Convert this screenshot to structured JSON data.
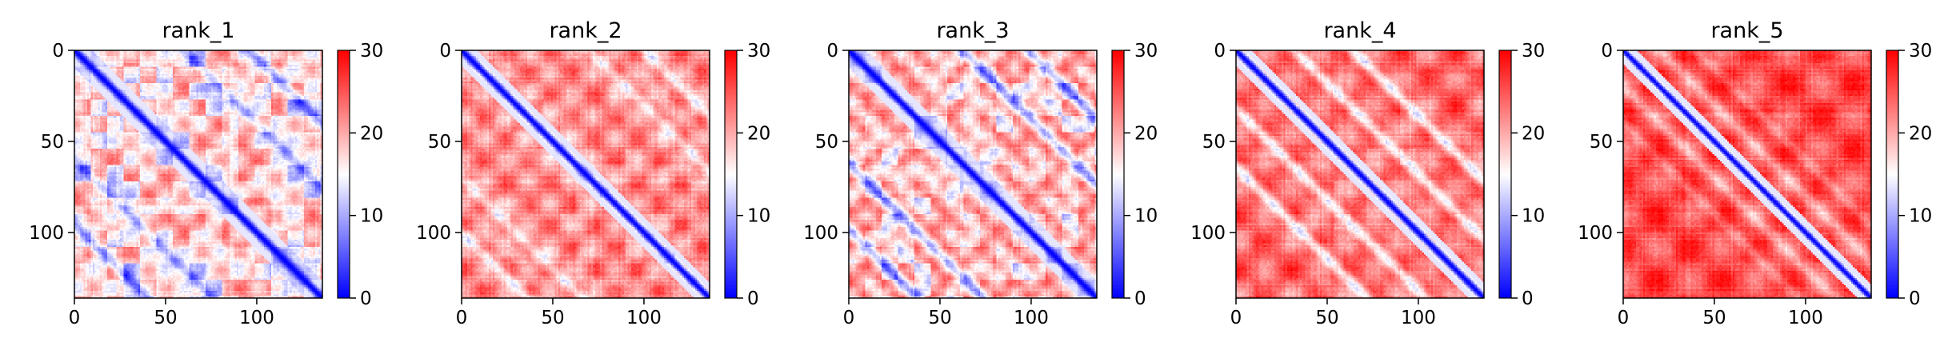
{
  "figure_colors": {
    "low": "#0000ff",
    "mid": "#ffffff",
    "high": "#ff0000",
    "axis": "#000000"
  },
  "chart_data": [
    {
      "type": "heatmap",
      "title": "rank_1",
      "matrix_size": 136,
      "xlim": [
        0,
        136
      ],
      "ylim": [
        136,
        0
      ],
      "xticks": [
        0,
        50,
        100
      ],
      "yticks": [
        0,
        50,
        100
      ],
      "colorbar": {
        "min": 0,
        "max": 30,
        "ticks": [
          0,
          10,
          20,
          30
        ],
        "colormap": "bwr"
      },
      "pattern": {
        "diagonal_width": 4.5,
        "offdiag_bands": [
          60,
          96
        ],
        "band_strength": 0.7,
        "block_period": 20,
        "patchiness": 0.9,
        "base_level": 0.68
      }
    },
    {
      "type": "heatmap",
      "title": "rank_2",
      "matrix_size": 136,
      "xlim": [
        0,
        136
      ],
      "ylim": [
        136,
        0
      ],
      "xticks": [
        0,
        50,
        100
      ],
      "yticks": [
        0,
        50,
        100
      ],
      "colorbar": {
        "min": 0,
        "max": 30,
        "ticks": [
          0,
          10,
          20,
          30
        ],
        "colormap": "bwr"
      },
      "pattern": {
        "diagonal_width": 4.0,
        "offdiag_bands": [
          70,
          100
        ],
        "band_strength": 0.5,
        "block_period": 24,
        "patchiness": 0.4,
        "base_level": 0.74
      }
    },
    {
      "type": "heatmap",
      "title": "rank_3",
      "matrix_size": 136,
      "xlim": [
        0,
        136
      ],
      "ylim": [
        136,
        0
      ],
      "xticks": [
        0,
        50,
        100
      ],
      "yticks": [
        0,
        50,
        100
      ],
      "colorbar": {
        "min": 0,
        "max": 30,
        "ticks": [
          0,
          10,
          20,
          30
        ],
        "colormap": "bwr"
      },
      "pattern": {
        "diagonal_width": 4.2,
        "offdiag_bands": [
          62,
          98
        ],
        "band_strength": 0.6,
        "block_period": 18,
        "patchiness": 0.8,
        "base_level": 0.7
      }
    },
    {
      "type": "heatmap",
      "title": "rank_4",
      "matrix_size": 136,
      "xlim": [
        0,
        136
      ],
      "ylim": [
        136,
        0
      ],
      "xticks": [
        0,
        50,
        100
      ],
      "yticks": [
        0,
        50,
        100
      ],
      "colorbar": {
        "min": 0,
        "max": 30,
        "ticks": [
          0,
          10,
          20,
          30
        ],
        "colormap": "bwr"
      },
      "pattern": {
        "diagonal_width": 4.0,
        "offdiag_bands": [
          32,
          64
        ],
        "band_strength": 0.75,
        "block_period": 30,
        "patchiness": 0.3,
        "base_level": 0.8
      }
    },
    {
      "type": "heatmap",
      "title": "rank_5",
      "matrix_size": 136,
      "xlim": [
        0,
        136
      ],
      "ylim": [
        136,
        0
      ],
      "xticks": [
        0,
        50,
        100
      ],
      "yticks": [
        0,
        50,
        100
      ],
      "colorbar": {
        "min": 0,
        "max": 30,
        "ticks": [
          0,
          10,
          20,
          30
        ],
        "colormap": "bwr"
      },
      "pattern": {
        "diagonal_width": 3.6,
        "offdiag_bands": [
          20,
          40
        ],
        "band_strength": 0.35,
        "block_period": 36,
        "patchiness": 0.15,
        "base_level": 0.86
      }
    }
  ]
}
